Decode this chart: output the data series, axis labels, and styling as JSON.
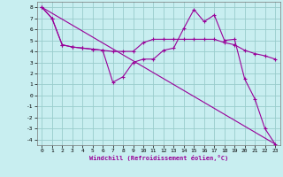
{
  "xlabel": "Windchill (Refroidissement éolien,°C)",
  "bg_color": "#c8eef0",
  "line_color": "#990099",
  "grid_color": "#99cccc",
  "xlim": [
    -0.5,
    23.5
  ],
  "ylim": [
    -4.5,
    8.5
  ],
  "yticks": [
    -4,
    -3,
    -2,
    -1,
    0,
    1,
    2,
    3,
    4,
    5,
    6,
    7,
    8
  ],
  "xticks": [
    0,
    1,
    2,
    3,
    4,
    5,
    6,
    7,
    8,
    9,
    10,
    11,
    12,
    13,
    14,
    15,
    16,
    17,
    18,
    19,
    20,
    21,
    22,
    23
  ],
  "series1_x": [
    0,
    1,
    2,
    3,
    4,
    5,
    6,
    7,
    8,
    9,
    10,
    11,
    12,
    13,
    14,
    15,
    16,
    17,
    18,
    19,
    20,
    21,
    22,
    23
  ],
  "series1_y": [
    8.0,
    7.0,
    4.6,
    4.4,
    4.3,
    4.2,
    4.1,
    1.2,
    1.7,
    3.0,
    3.3,
    3.3,
    4.1,
    4.3,
    6.1,
    7.8,
    6.7,
    7.3,
    5.0,
    5.1,
    1.5,
    -0.3,
    -3.0,
    -4.4
  ],
  "series2_x": [
    0,
    1,
    2,
    3,
    4,
    5,
    6,
    7,
    8,
    9,
    10,
    11,
    12,
    13,
    14,
    15,
    16,
    17,
    18,
    19,
    20,
    21,
    22,
    23
  ],
  "series2_y": [
    8.0,
    7.0,
    4.6,
    4.4,
    4.3,
    4.2,
    4.1,
    4.0,
    4.0,
    4.0,
    4.8,
    5.1,
    5.1,
    5.1,
    5.1,
    5.1,
    5.1,
    5.1,
    4.8,
    4.6,
    4.1,
    3.8,
    3.6,
    3.3
  ],
  "series3_x": [
    0,
    23
  ],
  "series3_y": [
    8.0,
    -4.4
  ]
}
